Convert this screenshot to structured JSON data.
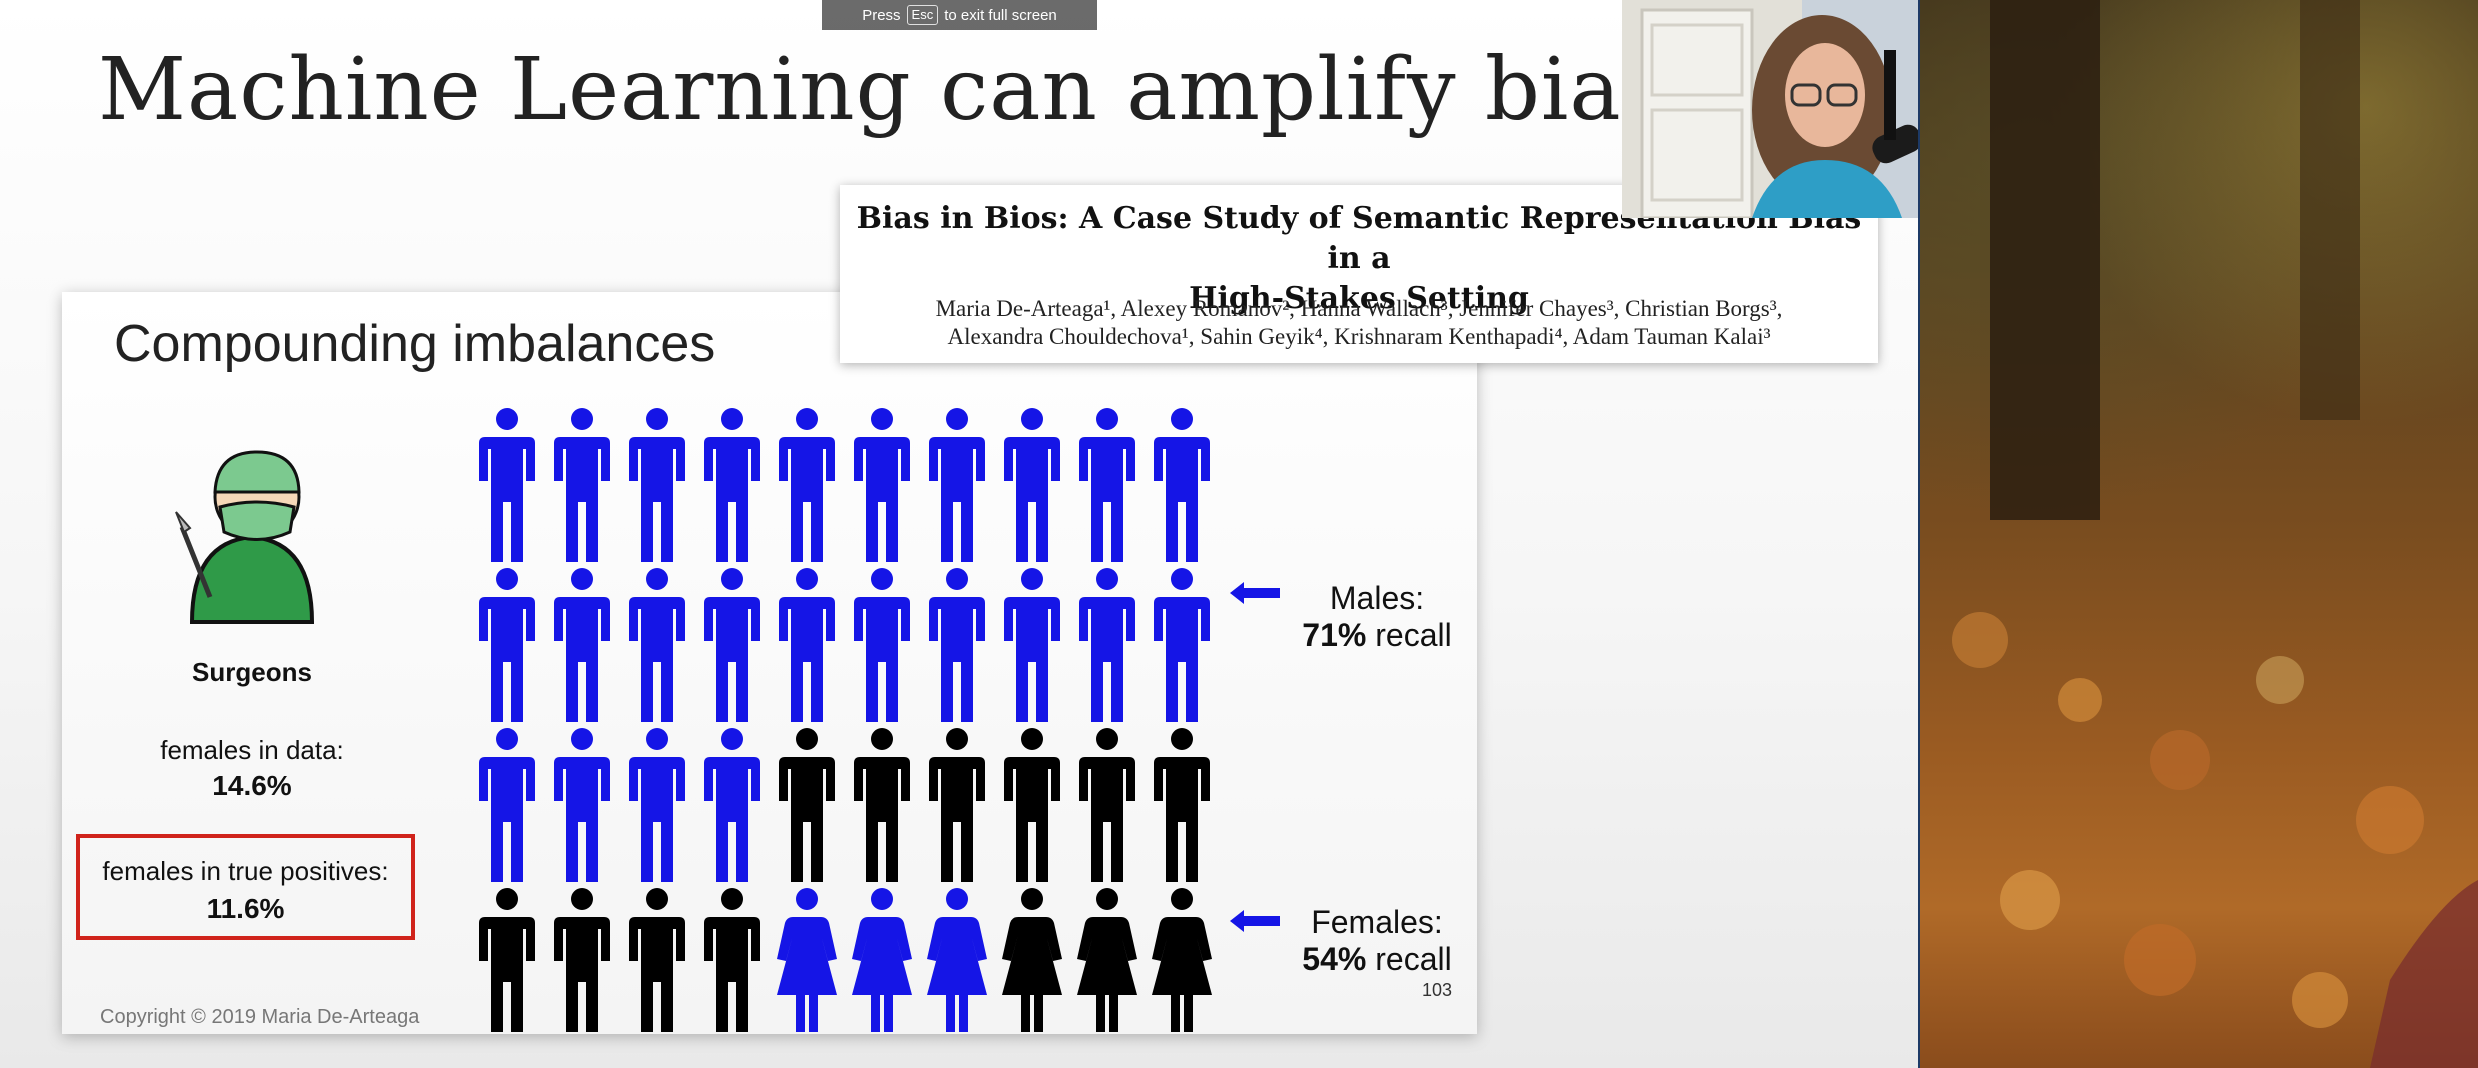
{
  "overlay": {
    "fullscreen_prefix": "Press",
    "fullscreen_key": "Esc",
    "fullscreen_suffix": "to exit full screen"
  },
  "slide": {
    "title": "Machine Learning can amplify bias."
  },
  "inner_slide": {
    "title": "Compounding imbalances",
    "surgeons_label": "Surgeons",
    "females_in_data_label": "females in data:",
    "females_in_data_value": "14.6%",
    "females_true_pos_label": "females in true positives:",
    "females_true_pos_value": "11.6%",
    "males_label": "Males:",
    "males_recall_value": "71%",
    "males_recall_word": "recall",
    "females_label": "Females:",
    "females_recall_value": "54%",
    "females_recall_word": "recall",
    "page_number": "103",
    "copyright": "Copyright © 2019 Maria De-Arteaga"
  },
  "paper": {
    "title_line1": "Bias in Bios: A Case Study of Semantic Representation Bias in a",
    "title_line2": "High-Stakes Setting",
    "authors_line1": "Maria De-Arteaga¹, Alexey Romanov², Hanna Wallach³, Jennifer Chayes³, Christian Borgs³,",
    "authors_line2": "Alexandra Chouldechova¹, Sahin Geyik⁴, Krishnaram Kenthapadi⁴, Adam Tauman Kalai³"
  },
  "colors": {
    "blue": "#1515e6",
    "black": "#000000",
    "red_box": "#d0231b"
  },
  "people_grid": {
    "rows": [
      [
        "male-blue",
        "male-blue",
        "male-blue",
        "male-blue",
        "male-blue",
        "male-blue",
        "male-blue",
        "male-blue",
        "male-blue",
        "male-blue"
      ],
      [
        "male-blue",
        "male-blue",
        "male-blue",
        "male-blue",
        "male-blue",
        "male-blue",
        "male-blue",
        "male-blue",
        "male-blue",
        "male-blue"
      ],
      [
        "male-blue",
        "male-blue",
        "male-blue",
        "male-blue",
        "male-black",
        "male-black",
        "male-black",
        "male-black",
        "male-black",
        "male-black"
      ],
      [
        "male-black",
        "male-black",
        "male-black",
        "male-black",
        "female-blue",
        "female-blue",
        "female-blue",
        "female-black",
        "female-black",
        "female-black"
      ]
    ]
  }
}
